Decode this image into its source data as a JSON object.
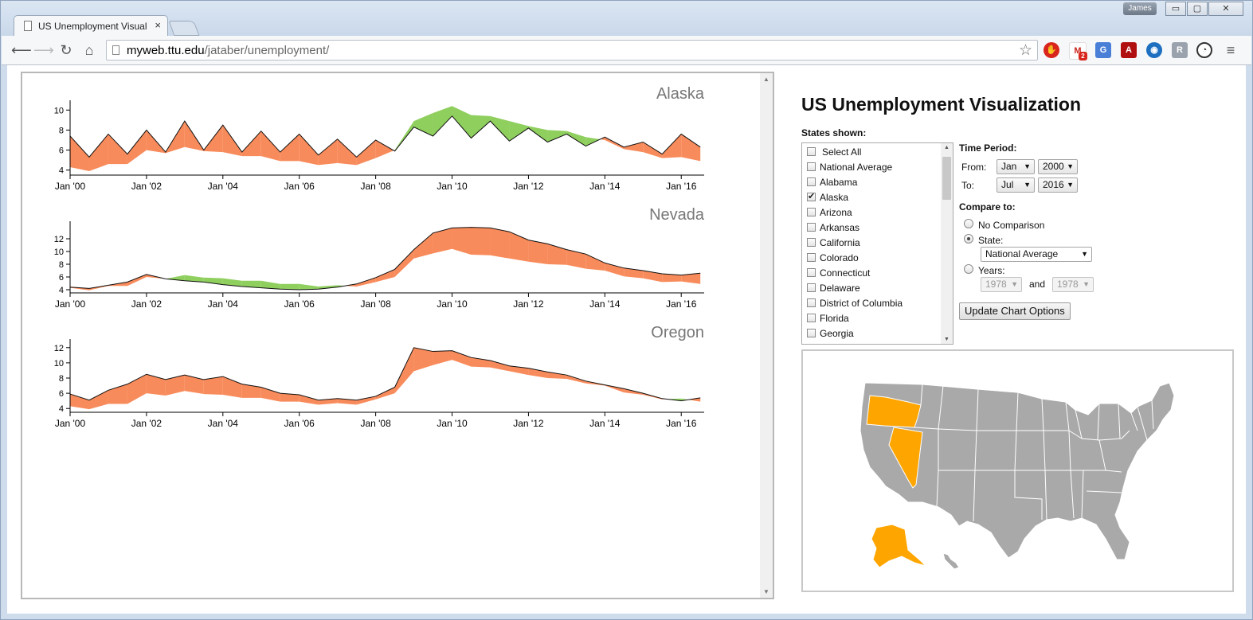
{
  "browser": {
    "tab_title": "US Unemployment Visual",
    "tab_close": "×",
    "user": "James",
    "window_buttons": [
      "▭",
      "▢",
      "✕"
    ],
    "url_host": "myweb.ttu.edu",
    "url_path": "/jataber/unemployment/",
    "icons": [
      "back-icon",
      "forward-icon",
      "reload-icon",
      "home-icon",
      "bookmark-star-icon",
      "menu-icon"
    ],
    "extensions": [
      "stop-hand-icon",
      "gmail-icon",
      "translate-icon",
      "pdf-icon",
      "eye-icon",
      "tampermonkey-icon",
      "speedometer-icon"
    ],
    "gmail_count": "2"
  },
  "panel": {
    "title": "US Unemployment Visualization",
    "states_label": "States shown:",
    "states": [
      {
        "label": "Select All",
        "checked": false
      },
      {
        "label": "National Average",
        "checked": false
      },
      {
        "label": "Alabama",
        "checked": false
      },
      {
        "label": "Alaska",
        "checked": true
      },
      {
        "label": "Arizona",
        "checked": false
      },
      {
        "label": "Arkansas",
        "checked": false
      },
      {
        "label": "California",
        "checked": false
      },
      {
        "label": "Colorado",
        "checked": false
      },
      {
        "label": "Connecticut",
        "checked": false
      },
      {
        "label": "Delaware",
        "checked": false
      },
      {
        "label": "District of Columbia",
        "checked": false
      },
      {
        "label": "Florida",
        "checked": false
      },
      {
        "label": "Georgia",
        "checked": false
      }
    ],
    "time_period_label": "Time Period:",
    "from_label": "From:",
    "to_label": "To:",
    "from_month": "Jan",
    "from_year": "2000",
    "to_month": "Jul",
    "to_year": "2016",
    "compare_label": "Compare to:",
    "no_comparison_label": "No Comparison",
    "state_label": "State:",
    "state_value": "National Average",
    "years_label": "Years:",
    "year_a": "1978",
    "and_label": "and",
    "year_b": "1978",
    "compare_selected": "state",
    "update_button": "Update Chart Options"
  },
  "map": {
    "highlighted_states": [
      "Oregon",
      "Nevada",
      "Alaska"
    ],
    "highlight_color": "#FFA500",
    "base_color": "#A9A9A9"
  },
  "chart_data": [
    {
      "type": "area",
      "title": "Alaska",
      "x_tick_labels": [
        "Jan '00",
        "Jan '02",
        "Jan '04",
        "Jan '06",
        "Jan '08",
        "Jan '10",
        "Jan '12",
        "Jan '14",
        "Jan '16"
      ],
      "y_tick_labels": [
        "4",
        "6",
        "8",
        "10"
      ],
      "ylim": [
        3.5,
        10.5
      ],
      "x_years": [
        2000,
        2000.5,
        2001,
        2001.5,
        2002,
        2002.5,
        2003,
        2003.5,
        2004,
        2004.5,
        2005,
        2005.5,
        2006,
        2006.5,
        2007,
        2007.5,
        2008,
        2008.5,
        2009,
        2009.5,
        2010,
        2010.5,
        2011,
        2011.5,
        2012,
        2012.5,
        2013,
        2013.5,
        2014,
        2014.5,
        2015,
        2015.5,
        2016,
        2016.5
      ],
      "series": [
        {
          "name": "Alaska",
          "values": [
            7.4,
            5.3,
            7.6,
            5.6,
            8.0,
            5.8,
            8.9,
            6.0,
            8.5,
            5.8,
            7.9,
            5.8,
            7.6,
            5.5,
            7.1,
            5.3,
            7.0,
            5.9,
            8.3,
            7.4,
            9.4,
            7.2,
            8.9,
            6.9,
            8.2,
            6.8,
            7.6,
            6.4,
            7.3,
            6.3,
            6.8,
            5.6,
            7.6,
            6.3
          ]
        },
        {
          "name": "National Average",
          "values": [
            4.3,
            3.9,
            4.6,
            4.6,
            6.0,
            5.7,
            6.3,
            5.9,
            5.8,
            5.4,
            5.4,
            4.9,
            4.9,
            4.5,
            4.7,
            4.5,
            5.2,
            6.0,
            8.9,
            9.7,
            10.4,
            9.5,
            9.4,
            8.9,
            8.4,
            8.0,
            7.9,
            7.3,
            7.0,
            6.1,
            5.8,
            5.2,
            5.3,
            4.9
          ]
        }
      ]
    },
    {
      "type": "area",
      "title": "Nevada",
      "x_tick_labels": [
        "Jan '00",
        "Jan '02",
        "Jan '04",
        "Jan '06",
        "Jan '08",
        "Jan '10",
        "Jan '12",
        "Jan '14",
        "Jan '16"
      ],
      "y_tick_labels": [
        "4",
        "6",
        "8",
        "10",
        "12"
      ],
      "ylim": [
        3.5,
        14
      ],
      "x_years": [
        2000,
        2000.5,
        2001,
        2001.5,
        2002,
        2002.5,
        2003,
        2003.5,
        2004,
        2004.5,
        2005,
        2005.5,
        2006,
        2006.5,
        2007,
        2007.5,
        2008,
        2008.5,
        2009,
        2009.5,
        2010,
        2010.5,
        2011,
        2011.5,
        2012,
        2012.5,
        2013,
        2013.5,
        2014,
        2014.5,
        2015,
        2015.5,
        2016,
        2016.5
      ],
      "series": [
        {
          "name": "Nevada",
          "values": [
            4.4,
            4.2,
            4.7,
            5.2,
            6.4,
            5.7,
            5.4,
            5.2,
            4.8,
            4.5,
            4.3,
            4.1,
            4.0,
            4.1,
            4.4,
            4.9,
            5.9,
            7.2,
            10.3,
            12.9,
            13.7,
            13.8,
            13.7,
            13.1,
            11.8,
            11.2,
            10.3,
            9.6,
            8.2,
            7.4,
            7.0,
            6.5,
            6.3,
            6.6
          ]
        },
        {
          "name": "National Average",
          "values": [
            4.3,
            3.9,
            4.6,
            4.6,
            6.0,
            5.7,
            6.3,
            5.9,
            5.8,
            5.4,
            5.4,
            4.9,
            4.9,
            4.5,
            4.7,
            4.5,
            5.2,
            6.0,
            8.9,
            9.7,
            10.4,
            9.5,
            9.4,
            8.9,
            8.4,
            8.0,
            7.9,
            7.3,
            7.0,
            6.1,
            5.8,
            5.2,
            5.3,
            4.9
          ]
        }
      ]
    },
    {
      "type": "area",
      "title": "Oregon",
      "x_tick_labels": [
        "Jan '00",
        "Jan '02",
        "Jan '04",
        "Jan '06",
        "Jan '08",
        "Jan '10",
        "Jan '12",
        "Jan '14",
        "Jan '16"
      ],
      "y_tick_labels": [
        "4",
        "6",
        "8",
        "10",
        "12"
      ],
      "ylim": [
        3.5,
        12.5
      ],
      "x_years": [
        2000,
        2000.5,
        2001,
        2001.5,
        2002,
        2002.5,
        2003,
        2003.5,
        2004,
        2004.5,
        2005,
        2005.5,
        2006,
        2006.5,
        2007,
        2007.5,
        2008,
        2008.5,
        2009,
        2009.5,
        2010,
        2010.5,
        2011,
        2011.5,
        2012,
        2012.5,
        2013,
        2013.5,
        2014,
        2014.5,
        2015,
        2015.5,
        2016,
        2016.5
      ],
      "series": [
        {
          "name": "Oregon",
          "values": [
            5.9,
            5.1,
            6.4,
            7.2,
            8.5,
            7.8,
            8.4,
            7.8,
            8.2,
            7.2,
            6.8,
            6.0,
            5.8,
            5.1,
            5.3,
            5.1,
            5.6,
            6.8,
            12.0,
            11.5,
            11.6,
            10.7,
            10.3,
            9.6,
            9.3,
            8.8,
            8.4,
            7.6,
            7.1,
            6.6,
            6.0,
            5.3,
            5.0,
            5.4
          ]
        },
        {
          "name": "National Average",
          "values": [
            4.3,
            3.9,
            4.6,
            4.6,
            6.0,
            5.7,
            6.3,
            5.9,
            5.8,
            5.4,
            5.4,
            4.9,
            4.9,
            4.5,
            4.7,
            4.5,
            5.2,
            6.0,
            8.9,
            9.7,
            10.4,
            9.5,
            9.4,
            8.9,
            8.4,
            8.0,
            7.9,
            7.3,
            7.0,
            6.1,
            5.8,
            5.2,
            5.3,
            4.9
          ]
        }
      ]
    }
  ],
  "colors": {
    "higher_than_comparison": "#F88B5B",
    "lower_than_comparison": "#8FCF5E",
    "line": "#111111"
  }
}
